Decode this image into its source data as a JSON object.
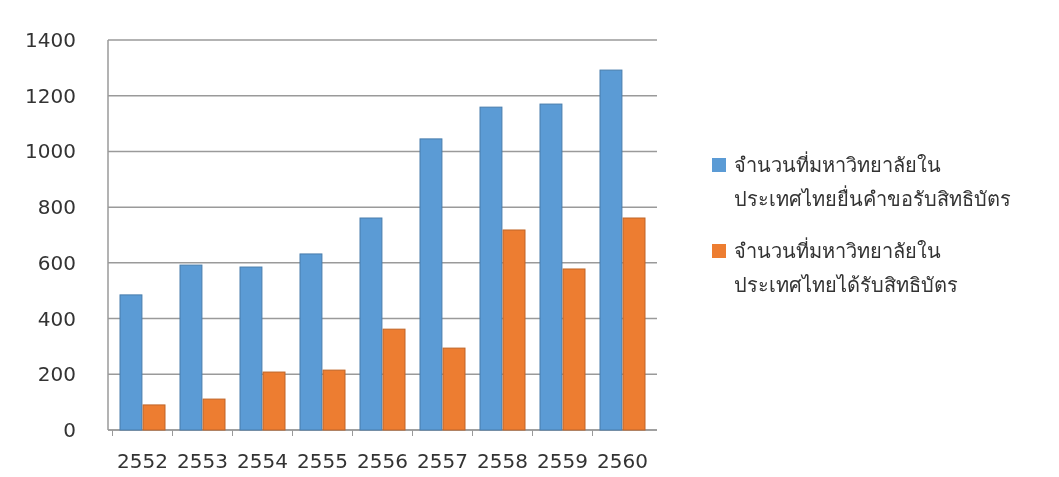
{
  "chart_data": {
    "type": "bar",
    "categories": [
      "2552",
      "2553",
      "2554",
      "2555",
      "2556",
      "2557",
      "2558",
      "2559",
      "2560"
    ],
    "series": [
      {
        "name": "จำนวนที่มหาวิทยาลัยในประเทศไทยยื่นคำขอรับสิทธิบัตร",
        "color": "#5b9bd5",
        "values": [
          485,
          592,
          585,
          632,
          761,
          1045,
          1159,
          1170,
          1292
        ]
      },
      {
        "name": "จำนวนที่มหาวิทยาลัยในประเทศไทยได้รับสิทธิบัตร",
        "color": "#ed7d31",
        "values": [
          90,
          111,
          208,
          215,
          362,
          294,
          718,
          578,
          761
        ]
      }
    ],
    "ylim": [
      0,
      1400
    ],
    "yticks": [
      0,
      200,
      400,
      600,
      800,
      1000,
      1200,
      1400
    ],
    "grid": "y",
    "legend": "right"
  }
}
